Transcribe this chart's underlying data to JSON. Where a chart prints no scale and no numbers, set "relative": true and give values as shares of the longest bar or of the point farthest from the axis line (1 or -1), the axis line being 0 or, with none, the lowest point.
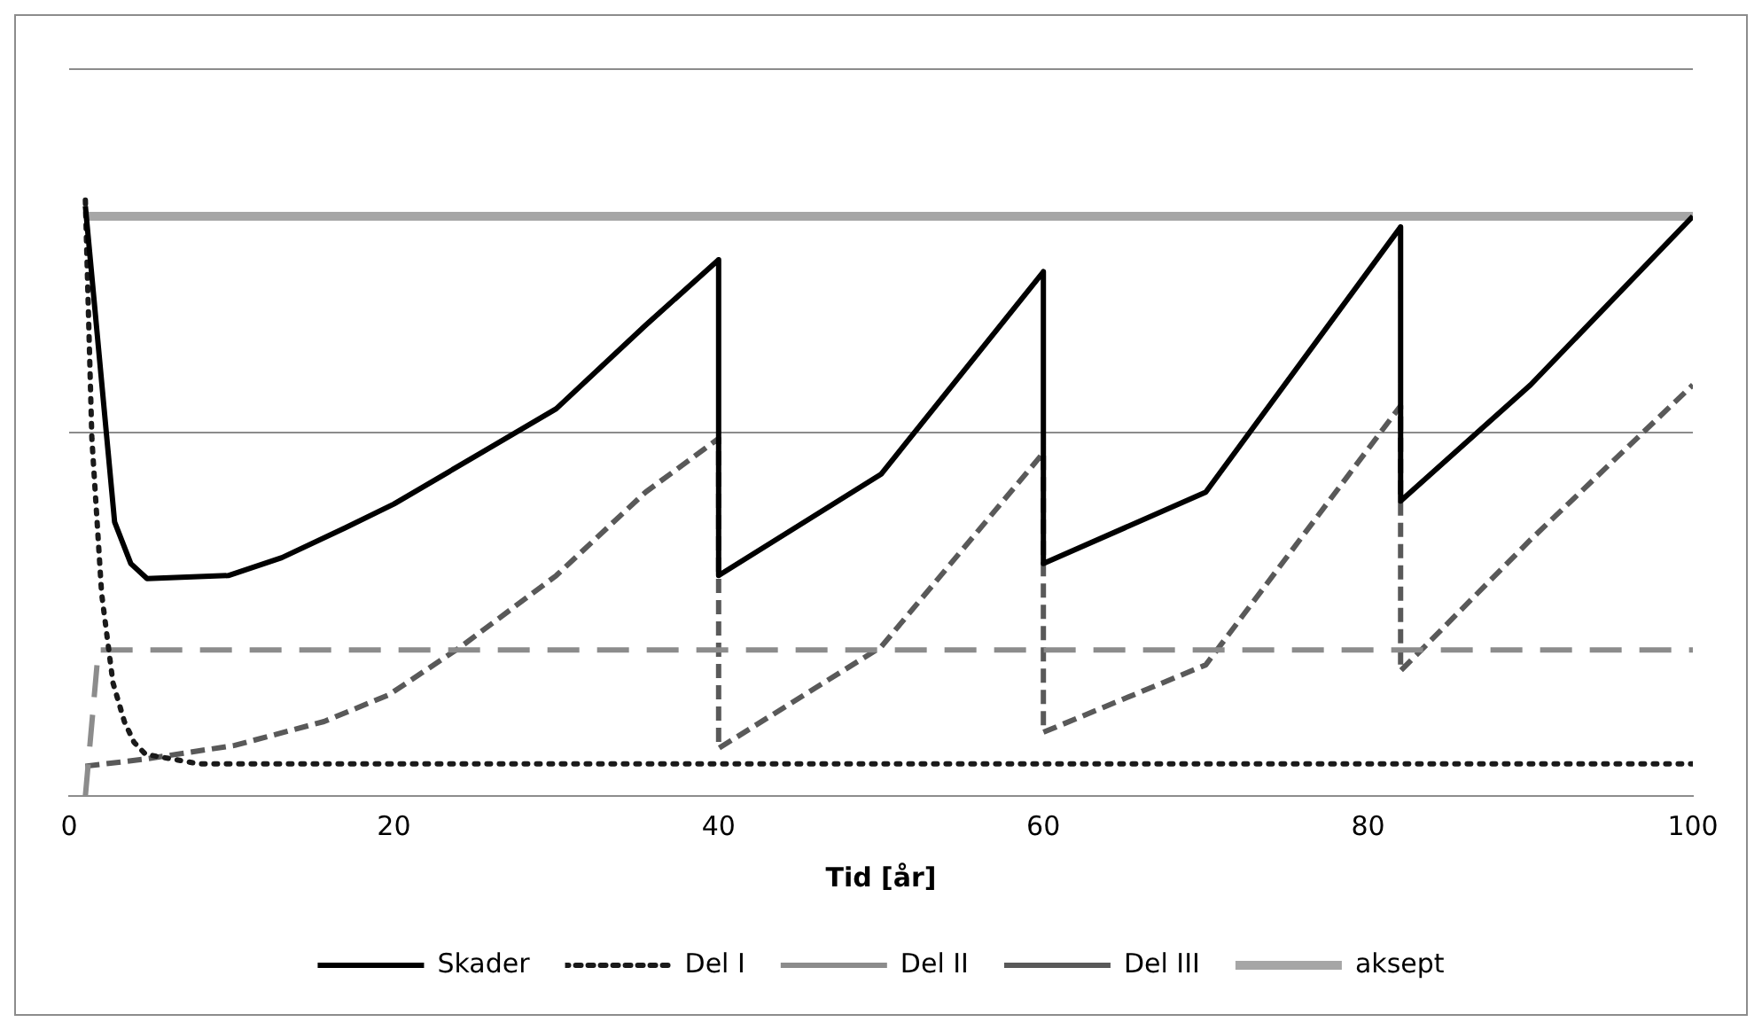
{
  "chart_data": {
    "type": "line",
    "relative": true,
    "xlabel": "Tid [år]",
    "xlim": [
      0,
      100
    ],
    "xticks": [
      0,
      20,
      40,
      60,
      80,
      100
    ],
    "ref_lines": [
      {
        "axis": "y",
        "value": 0.61,
        "color": "#8c8c8c"
      },
      {
        "axis": "y",
        "value": 1.22,
        "color": "#8c8c8c"
      }
    ],
    "legend": "bottom",
    "marker": "none",
    "series": [
      {
        "name": "Skader",
        "color": "#000000",
        "line_style": "solid",
        "x": [
          1,
          2.8,
          3.8,
          4.8,
          9.8,
          13.1,
          17,
          20,
          25,
          30,
          35.5,
          40,
          40,
          50,
          60,
          60,
          70,
          82,
          82,
          90,
          100
        ],
        "values": [
          0.99,
          0.46,
          0.39,
          0.365,
          0.37,
          0.4,
          0.45,
          0.49,
          0.57,
          0.65,
          0.79,
          0.9,
          0.37,
          0.54,
          0.88,
          0.39,
          0.51,
          0.955,
          0.495,
          0.69,
          0.973
        ]
      },
      {
        "name": "Del I",
        "color": "#1a1a1a",
        "line_style": "dotted",
        "x": [
          1,
          1.4,
          2,
          2.7,
          3.4,
          4,
          4.7,
          8,
          100
        ],
        "values": [
          1,
          0.6,
          0.34,
          0.19,
          0.125,
          0.09,
          0.07,
          0.054,
          0.054
        ]
      },
      {
        "name": "Del II",
        "color": "#8c8c8c",
        "line_style": "dashed",
        "x": [
          1,
          1.8,
          100
        ],
        "values": [
          0,
          0.245,
          0.245
        ]
      },
      {
        "name": "Del III",
        "color": "#595959",
        "line_style": "dashed",
        "x": [
          1,
          4.7,
          10.2,
          15.7,
          19.7,
          24.1,
          30,
          35.5,
          40,
          40,
          50,
          60,
          60,
          70,
          82,
          82,
          90,
          100
        ],
        "values": [
          0.05,
          0.062,
          0.085,
          0.125,
          0.17,
          0.25,
          0.37,
          0.51,
          0.6,
          0.08,
          0.25,
          0.576,
          0.107,
          0.22,
          0.655,
          0.21,
          0.43,
          0.69
        ]
      },
      {
        "name": "aksept",
        "color": "#a6a6a6",
        "line_style": "solid",
        "x": [
          1,
          100
        ],
        "values": [
          0.973,
          0.973
        ]
      }
    ]
  }
}
